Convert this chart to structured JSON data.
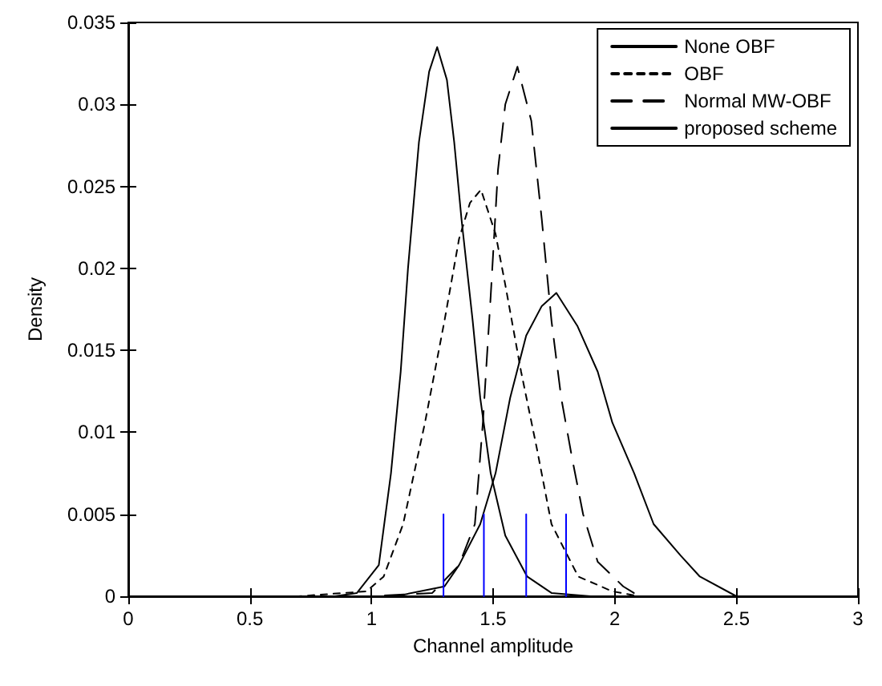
{
  "chart_data": {
    "type": "line",
    "xlabel": "Channel amplitude",
    "ylabel": "Density",
    "xlim": [
      0,
      3
    ],
    "xticks": [
      0,
      0.5,
      1,
      1.5,
      2,
      2.5,
      3
    ],
    "ylim": [
      0,
      0.035
    ],
    "yticks": [
      0,
      0.005,
      0.01,
      0.015,
      0.02,
      0.025,
      0.03,
      0.035
    ],
    "grid": false,
    "legend": "top right",
    "marker": "none",
    "series": [
      {
        "name": "None OBF",
        "color": "#000000",
        "line_style": "solid",
        "x": [
          0,
          0.85,
          0.94,
          1.03,
          1.08,
          1.12,
          1.15,
          1.195,
          1.237,
          1.27,
          1.31,
          1.34,
          1.37,
          1.416,
          1.447,
          1.49,
          1.55,
          1.64,
          1.74,
          1.9,
          3
        ],
        "values": [
          0,
          0,
          0.0002,
          0.0019,
          0.0075,
          0.0137,
          0.02,
          0.0277,
          0.032,
          0.0335,
          0.0315,
          0.0277,
          0.023,
          0.0168,
          0.0121,
          0.0075,
          0.0037,
          0.0012,
          0.0002,
          0,
          0
        ]
      },
      {
        "name": "OBF",
        "color": "#000000",
        "line_style": "dashed",
        "x": [
          0,
          0.7,
          0.98,
          1.05,
          1.13,
          1.22,
          1.3,
          1.36,
          1.405,
          1.45,
          1.51,
          1.55,
          1.615,
          1.68,
          1.74,
          1.85,
          1.99,
          2.1,
          3
        ],
        "values": [
          0,
          0,
          0.0003,
          0.0012,
          0.0044,
          0.0106,
          0.0168,
          0.0218,
          0.024,
          0.0248,
          0.0221,
          0.019,
          0.0137,
          0.009,
          0.0044,
          0.0012,
          0.0003,
          0,
          0
        ]
      },
      {
        "name": "Normal MW-OBF",
        "color": "#000000",
        "line_style": "dashed",
        "x": [
          0,
          1.0,
          1.25,
          1.36,
          1.425,
          1.458,
          1.49,
          1.52,
          1.55,
          1.6,
          1.657,
          1.7,
          1.74,
          1.78,
          1.825,
          1.87,
          1.93,
          2.035,
          2.1,
          3
        ],
        "values": [
          0,
          0,
          0.0002,
          0.0019,
          0.0044,
          0.0106,
          0.0183,
          0.026,
          0.03,
          0.0323,
          0.029,
          0.023,
          0.0168,
          0.0121,
          0.0084,
          0.005,
          0.0021,
          0.0006,
          0,
          0
        ]
      },
      {
        "name": "proposed scheme",
        "color": "#000000",
        "line_style": "solid",
        "x": [
          0,
          1.1,
          1.3,
          1.36,
          1.447,
          1.51,
          1.57,
          1.636,
          1.7,
          1.76,
          1.846,
          1.93,
          1.99,
          2.08,
          2.16,
          2.27,
          2.35,
          2.5,
          3
        ],
        "values": [
          0,
          0,
          0.0006,
          0.0019,
          0.0044,
          0.0075,
          0.0121,
          0.0159,
          0.0177,
          0.0185,
          0.0165,
          0.0137,
          0.0106,
          0.0075,
          0.0044,
          0.0025,
          0.0012,
          0,
          0
        ]
      },
      {
        "color": "#0000ff",
        "line_style": "solid",
        "x": [
          1.296,
          1.296
        ],
        "values": [
          0,
          0.005
        ]
      },
      {
        "color": "#0000ff",
        "line_style": "solid",
        "x": [
          1.462,
          1.462
        ],
        "values": [
          0,
          0.005
        ]
      },
      {
        "color": "#0000ff",
        "line_style": "solid",
        "x": [
          1.636,
          1.636
        ],
        "values": [
          0,
          0.005
        ]
      },
      {
        "color": "#0000ff",
        "line_style": "solid",
        "x": [
          1.8,
          1.8
        ],
        "values": [
          0,
          0.005
        ]
      }
    ]
  }
}
